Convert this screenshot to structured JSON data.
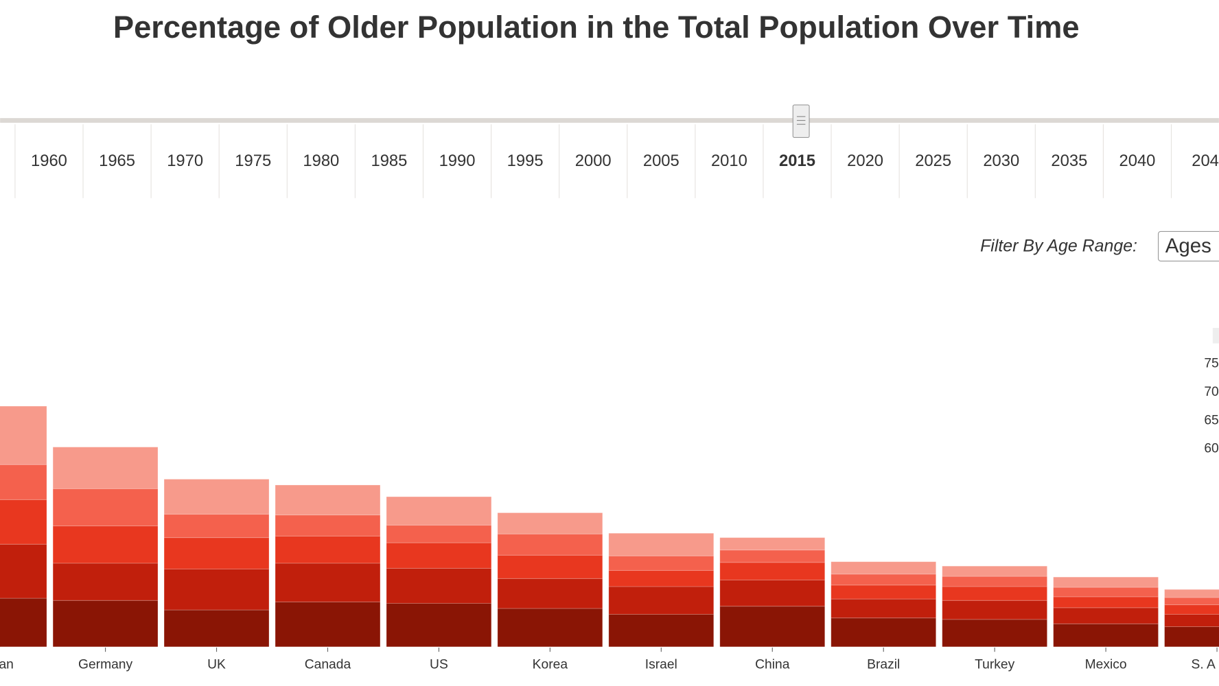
{
  "title": "Percentage of Older Population in the Total Population Over Time",
  "timeline": {
    "years": [
      "1960",
      "1965",
      "1970",
      "1975",
      "1980",
      "1985",
      "1990",
      "1995",
      "2000",
      "2005",
      "2010",
      "2015",
      "2020",
      "2025",
      "2030",
      "2035",
      "2040",
      "204"
    ],
    "selected": "2015"
  },
  "filter": {
    "label": "Filter By Age Range:",
    "value": "Ages"
  },
  "chart_data": {
    "type": "stacked-bar",
    "categories": [
      "an",
      "Germany",
      "UK",
      "Canada",
      "US",
      "Korea",
      "Israel",
      "China",
      "Brazil",
      "Turkey",
      "Mexico",
      "S. A"
    ],
    "ylim": [
      0,
      35
    ],
    "series": [
      {
        "name": "60",
        "color": "#8a1505",
        "values": [
          6.7,
          6.4,
          5.1,
          6.2,
          6.0,
          5.3,
          4.5,
          5.6,
          4.0,
          3.8,
          3.2,
          2.8
        ]
      },
      {
        "name": "65",
        "color": "#c11f0c",
        "values": [
          7.4,
          5.1,
          5.6,
          5.3,
          4.8,
          4.1,
          3.8,
          3.6,
          2.6,
          2.6,
          2.2,
          1.7
        ]
      },
      {
        "name": "70",
        "color": "#e8371f",
        "values": [
          6.1,
          5.1,
          4.3,
          3.7,
          3.5,
          3.2,
          2.2,
          2.4,
          1.9,
          1.9,
          1.5,
          1.3
        ]
      },
      {
        "name": "75",
        "color": "#f4614d",
        "values": [
          4.8,
          5.1,
          3.2,
          2.9,
          2.4,
          2.9,
          2.0,
          1.7,
          1.5,
          1.4,
          1.3,
          1.0
        ]
      },
      {
        "name": null,
        "color": "#f79a8b",
        "values": [
          8.0,
          5.7,
          4.8,
          4.1,
          3.9,
          2.9,
          3.1,
          1.7,
          1.7,
          1.4,
          1.4,
          1.1
        ]
      }
    ]
  }
}
